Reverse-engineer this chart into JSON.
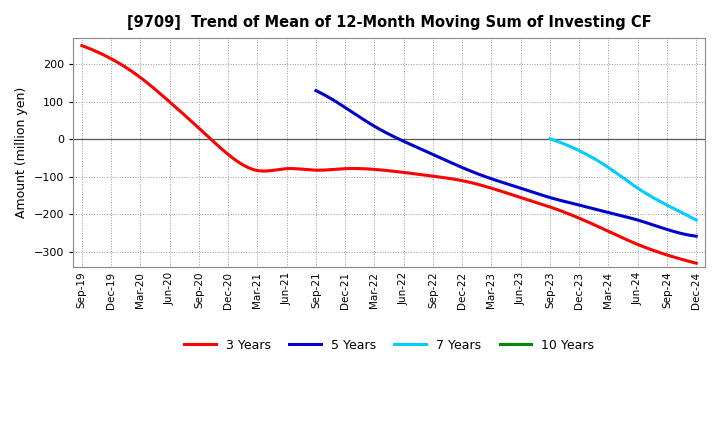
{
  "title": "[9709]  Trend of Mean of 12-Month Moving Sum of Investing CF",
  "ylabel": "Amount (million yen)",
  "background_color": "#ffffff",
  "plot_bg_color": "#ffffff",
  "grid_color": "#999999",
  "ylim": [
    -340,
    270
  ],
  "yticks": [
    -300,
    -200,
    -100,
    0,
    100,
    200
  ],
  "series": {
    "3yr": {
      "color": "#ff0000",
      "points": [
        [
          0,
          250
        ],
        [
          1,
          215
        ],
        [
          2,
          165
        ],
        [
          3,
          100
        ],
        [
          4,
          30
        ],
        [
          5,
          -40
        ],
        [
          6,
          -83
        ],
        [
          7,
          -78
        ],
        [
          8,
          -82
        ],
        [
          9,
          -78
        ],
        [
          10,
          -80
        ],
        [
          11,
          -88
        ],
        [
          12,
          -98
        ],
        [
          13,
          -110
        ],
        [
          14,
          -130
        ],
        [
          15,
          -155
        ],
        [
          16,
          -180
        ],
        [
          17,
          -210
        ],
        [
          18,
          -245
        ],
        [
          19,
          -280
        ],
        [
          20,
          -308
        ],
        [
          21,
          -330
        ]
      ]
    },
    "5yr": {
      "color": "#0000cc",
      "points": [
        [
          8,
          130
        ],
        [
          9,
          85
        ],
        [
          10,
          35
        ],
        [
          11,
          -5
        ],
        [
          12,
          -40
        ],
        [
          13,
          -75
        ],
        [
          14,
          -105
        ],
        [
          15,
          -130
        ],
        [
          16,
          -155
        ],
        [
          17,
          -175
        ],
        [
          18,
          -195
        ],
        [
          19,
          -215
        ],
        [
          20,
          -240
        ],
        [
          21,
          -258
        ]
      ]
    },
    "7yr": {
      "color": "#00ccff",
      "points": [
        [
          16,
          2
        ],
        [
          17,
          -30
        ],
        [
          18,
          -75
        ],
        [
          19,
          -130
        ],
        [
          20,
          -175
        ],
        [
          21,
          -215
        ]
      ]
    },
    "10yr": {
      "color": "#008800",
      "points": []
    }
  },
  "xtick_labels": [
    "Sep-19",
    "Dec-19",
    "Mar-20",
    "Jun-20",
    "Sep-20",
    "Dec-20",
    "Mar-21",
    "Jun-21",
    "Sep-21",
    "Dec-21",
    "Mar-22",
    "Jun-22",
    "Sep-22",
    "Dec-22",
    "Mar-23",
    "Jun-23",
    "Sep-23",
    "Dec-23",
    "Mar-24",
    "Jun-24",
    "Sep-24",
    "Dec-24"
  ],
  "legend": [
    {
      "label": "3 Years",
      "color": "#ff0000"
    },
    {
      "label": "5 Years",
      "color": "#0000cc"
    },
    {
      "label": "7 Years",
      "color": "#00ccff"
    },
    {
      "label": "10 Years",
      "color": "#008800"
    }
  ]
}
